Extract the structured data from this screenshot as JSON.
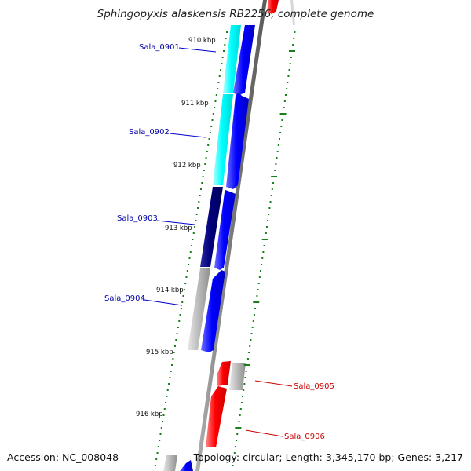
{
  "title": "Sphingopyxis alaskensis RB2256, complete genome",
  "footer": {
    "accession": "Accession: NC_008048",
    "summary": "Topology: circular; Length: 3,345,170 bp; Genes: 3,217"
  },
  "colors": {
    "forward_cds": "#0000ff",
    "reverse_cds": "#ff0000",
    "cyan_cds": "#00ffff",
    "navy_cds": "#00007a",
    "gray_cds": "#b3b3b3",
    "backbone": "#888888",
    "ticks": "#1a7f1a",
    "label_forward": "#0000aa",
    "label_reverse": "#cc0000"
  },
  "scale_labels": [
    "910 kbp",
    "911 kbp",
    "912 kbp",
    "913 kbp",
    "914 kbp",
    "915 kbp",
    "916 kbp"
  ],
  "genes": [
    {
      "name": "Sala_0901",
      "strand": "forward"
    },
    {
      "name": "Sala_0902",
      "strand": "forward"
    },
    {
      "name": "Sala_0903",
      "strand": "forward"
    },
    {
      "name": "Sala_0904",
      "strand": "forward"
    },
    {
      "name": "Sala_0905",
      "strand": "reverse"
    },
    {
      "name": "Sala_0906",
      "strand": "reverse"
    }
  ]
}
